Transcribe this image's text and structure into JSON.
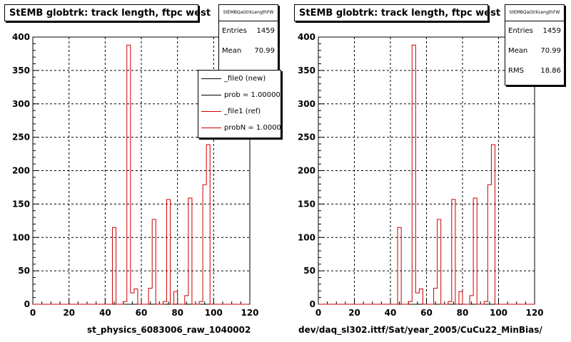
{
  "chart_data": [
    {
      "type": "histogram",
      "title": "StEMB globtrk: track length, ftpc west",
      "xlabel": "st_physics_6083006_raw_1040002",
      "ylabel": "",
      "xlim": [
        0,
        120
      ],
      "ylim": [
        0,
        400
      ],
      "x_ticks": [
        0,
        20,
        40,
        60,
        80,
        100,
        120
      ],
      "y_ticks": [
        0,
        50,
        100,
        150,
        200,
        250,
        300,
        350,
        400
      ],
      "grid": true,
      "bin_width": 2,
      "stats": {
        "name": "StEMBQaGtrkLengthFW",
        "entries_label": "Entries",
        "entries": "1459",
        "mean_label": "Mean",
        "mean": "70.99"
      },
      "legend": [
        {
          "label": "_file0 (new)",
          "color": "#000000"
        },
        {
          "label": "prob = 1.000000",
          "color": "#000000"
        },
        {
          "label": "_file1 (ref)",
          "color": "#cc0000"
        },
        {
          "label": "probN = 1.000000",
          "color": "#cc0000"
        }
      ],
      "series": [
        {
          "color": "#cc0000",
          "bins": [
            [
              0,
              0
            ],
            [
              2,
              0
            ],
            [
              4,
              0
            ],
            [
              6,
              0
            ],
            [
              8,
              0
            ],
            [
              10,
              0
            ],
            [
              12,
              0
            ],
            [
              14,
              0
            ],
            [
              16,
              0
            ],
            [
              18,
              0
            ],
            [
              20,
              0
            ],
            [
              22,
              0
            ],
            [
              24,
              0
            ],
            [
              26,
              0
            ],
            [
              28,
              0
            ],
            [
              30,
              0
            ],
            [
              32,
              0
            ],
            [
              34,
              0
            ],
            [
              36,
              0
            ],
            [
              38,
              0
            ],
            [
              40,
              0
            ],
            [
              42,
              0
            ],
            [
              44,
              115
            ],
            [
              46,
              0
            ],
            [
              48,
              0
            ],
            [
              50,
              4
            ],
            [
              52,
              388
            ],
            [
              54,
              17
            ],
            [
              56,
              23
            ],
            [
              58,
              0
            ],
            [
              60,
              0
            ],
            [
              62,
              0
            ],
            [
              64,
              24
            ],
            [
              66,
              127
            ],
            [
              68,
              0
            ],
            [
              70,
              0
            ],
            [
              72,
              4
            ],
            [
              74,
              157
            ],
            [
              76,
              0
            ],
            [
              78,
              19
            ],
            [
              80,
              0
            ],
            [
              82,
              0
            ],
            [
              84,
              13
            ],
            [
              86,
              159
            ],
            [
              88,
              0
            ],
            [
              90,
              0
            ],
            [
              92,
              4
            ],
            [
              94,
              179
            ],
            [
              96,
              239
            ],
            [
              98,
              0
            ],
            [
              100,
              0
            ],
            [
              102,
              0
            ],
            [
              104,
              0
            ],
            [
              106,
              0
            ],
            [
              108,
              0
            ],
            [
              110,
              0
            ],
            [
              112,
              0
            ],
            [
              114,
              0
            ],
            [
              116,
              0
            ],
            [
              118,
              0
            ]
          ]
        }
      ]
    },
    {
      "type": "histogram",
      "title": "StEMB globtrk: track length, ftpc west",
      "xlabel": "dev/daq_sl302.ittf/Sat/year_2005/CuCu22_MinBias/",
      "ylabel": "",
      "xlim": [
        0,
        120
      ],
      "ylim": [
        0,
        400
      ],
      "x_ticks": [
        0,
        20,
        40,
        60,
        80,
        100,
        120
      ],
      "y_ticks": [
        0,
        50,
        100,
        150,
        200,
        250,
        300,
        350,
        400
      ],
      "grid": true,
      "bin_width": 2,
      "stats": {
        "name": "StEMBQaGtrkLengthFW",
        "entries_label": "Entries",
        "entries": "1459",
        "mean_label": "Mean",
        "mean": "70.99",
        "rms_label": "RMS",
        "rms": "18.86"
      },
      "series": [
        {
          "color": "#cc0000",
          "bins": [
            [
              0,
              0
            ],
            [
              2,
              0
            ],
            [
              4,
              0
            ],
            [
              6,
              0
            ],
            [
              8,
              0
            ],
            [
              10,
              0
            ],
            [
              12,
              0
            ],
            [
              14,
              0
            ],
            [
              16,
              0
            ],
            [
              18,
              0
            ],
            [
              20,
              0
            ],
            [
              22,
              0
            ],
            [
              24,
              0
            ],
            [
              26,
              0
            ],
            [
              28,
              0
            ],
            [
              30,
              0
            ],
            [
              32,
              0
            ],
            [
              34,
              0
            ],
            [
              36,
              0
            ],
            [
              38,
              0
            ],
            [
              40,
              0
            ],
            [
              42,
              0
            ],
            [
              44,
              115
            ],
            [
              46,
              0
            ],
            [
              48,
              0
            ],
            [
              50,
              4
            ],
            [
              52,
              388
            ],
            [
              54,
              17
            ],
            [
              56,
              23
            ],
            [
              58,
              0
            ],
            [
              60,
              0
            ],
            [
              62,
              0
            ],
            [
              64,
              24
            ],
            [
              66,
              127
            ],
            [
              68,
              0
            ],
            [
              70,
              0
            ],
            [
              72,
              4
            ],
            [
              74,
              157
            ],
            [
              76,
              0
            ],
            [
              78,
              19
            ],
            [
              80,
              0
            ],
            [
              82,
              0
            ],
            [
              84,
              13
            ],
            [
              86,
              159
            ],
            [
              88,
              0
            ],
            [
              90,
              0
            ],
            [
              92,
              4
            ],
            [
              94,
              179
            ],
            [
              96,
              239
            ],
            [
              98,
              0
            ],
            [
              100,
              0
            ],
            [
              102,
              0
            ],
            [
              104,
              0
            ],
            [
              106,
              0
            ],
            [
              108,
              0
            ],
            [
              110,
              0
            ],
            [
              112,
              0
            ],
            [
              114,
              0
            ],
            [
              116,
              0
            ],
            [
              118,
              0
            ]
          ]
        }
      ]
    }
  ]
}
